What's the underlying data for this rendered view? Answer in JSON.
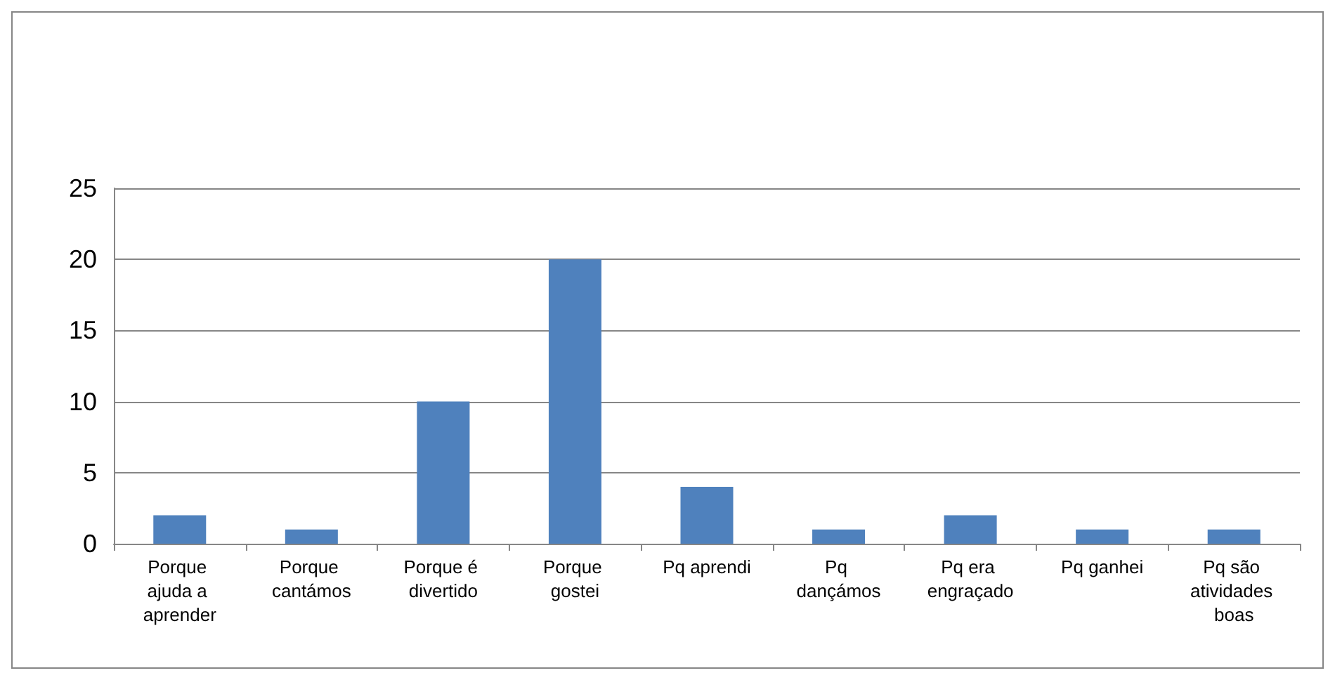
{
  "chart_data": {
    "type": "bar",
    "categories": [
      "Porque ajuda a aprender",
      "Porque cantámos",
      "Porque é divertido",
      "Porque gostei",
      "Pq aprendi",
      "Pq dançámos",
      "Pq era engraçado",
      "Pq ganhei",
      "Pq são atividades boas"
    ],
    "values": [
      2,
      1,
      10,
      20,
      4,
      1,
      2,
      1,
      1
    ],
    "color": "#4f81bd",
    "ylim": [
      0,
      25
    ],
    "yticks": [
      0,
      5,
      10,
      15,
      20,
      25
    ],
    "grid": "y"
  }
}
